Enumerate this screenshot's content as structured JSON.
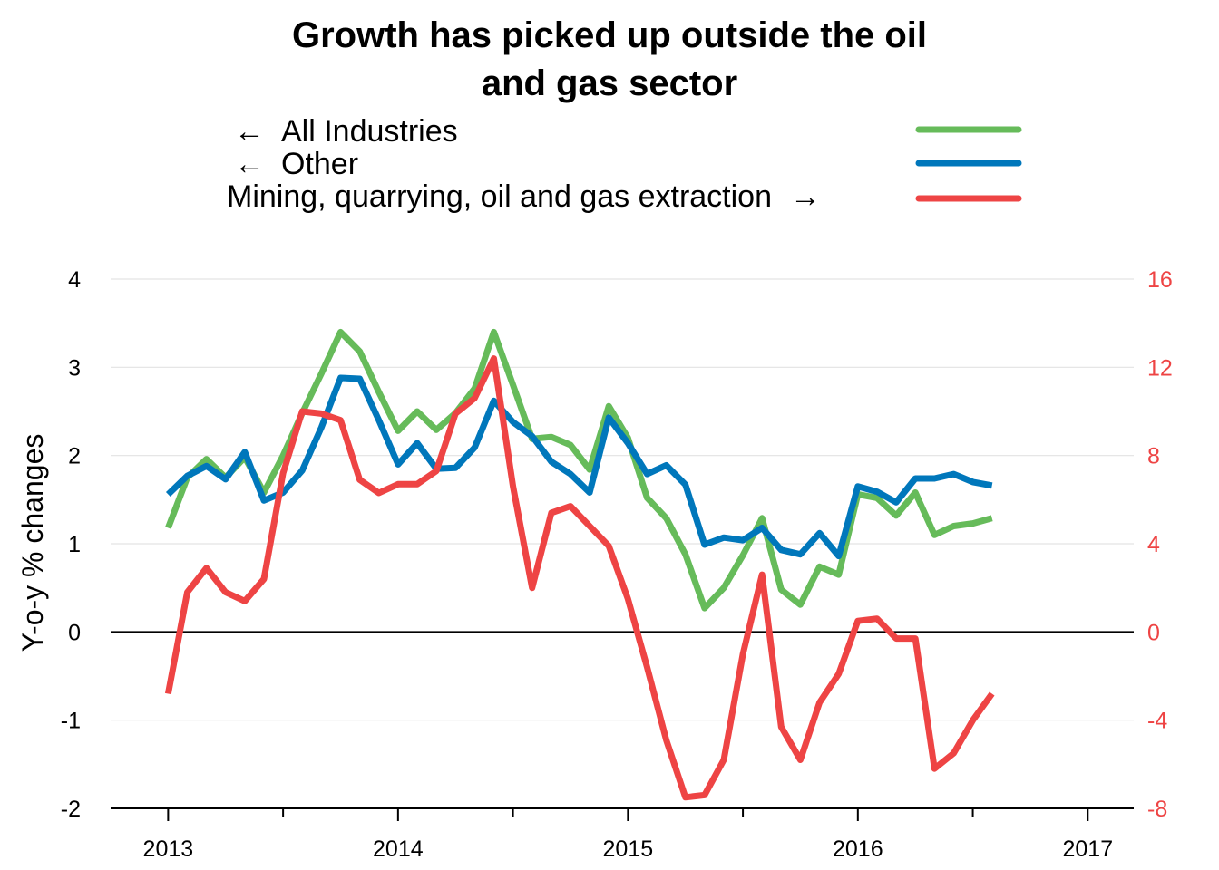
{
  "chart_data": {
    "type": "line",
    "title_lines": [
      "Growth has picked up outside the oil",
      "and gas sector"
    ],
    "ylabel": "Y-o-y % changes",
    "ylim_left": [
      -2,
      4
    ],
    "ylim_right": [
      -8,
      16
    ],
    "left_ticks": [
      "-2",
      "-1",
      "0",
      "1",
      "2",
      "3",
      "4"
    ],
    "right_ticks": [
      "-8",
      "-4",
      "0",
      "4",
      "8",
      "12",
      "16"
    ],
    "x_ticks": [
      "2013",
      "2014",
      "2015",
      "2016",
      "2017"
    ],
    "xlim": [
      2012.75,
      2017.2
    ],
    "grid": true,
    "legend_position": "top",
    "legend": [
      {
        "prefix": "←",
        "label": "All Industries",
        "suffix": "",
        "color": "#66bb5a"
      },
      {
        "prefix": "←",
        "label": "Other",
        "suffix": "",
        "color": "#0077bb"
      },
      {
        "prefix": "",
        "label": "Mining, quarrying, oil and gas extraction",
        "suffix": "→",
        "color": "#ee4444"
      }
    ],
    "right_axis_color": "#ee4444",
    "x": [
      2013.0,
      2013.0833,
      2013.1667,
      2013.25,
      2013.3333,
      2013.4167,
      2013.5,
      2013.5833,
      2013.6667,
      2013.75,
      2013.8333,
      2013.9167,
      2014.0,
      2014.0833,
      2014.1667,
      2014.25,
      2014.3333,
      2014.4167,
      2014.5,
      2014.5833,
      2014.6667,
      2014.75,
      2014.8333,
      2014.9167,
      2015.0,
      2015.0833,
      2015.1667,
      2015.25,
      2015.3333,
      2015.4167,
      2015.5,
      2015.5833,
      2015.6667,
      2015.75,
      2015.8333,
      2015.9167,
      2016.0,
      2016.0833,
      2016.1667,
      2016.25,
      2016.3333,
      2016.4167,
      2016.5,
      2016.5833
    ],
    "series": [
      {
        "name": "All Industries",
        "axis": "left",
        "color": "#66bb5a",
        "values": [
          1.18,
          1.75,
          1.96,
          1.75,
          1.98,
          1.58,
          2.0,
          2.48,
          2.93,
          3.4,
          3.18,
          2.72,
          2.28,
          2.5,
          2.29,
          2.48,
          2.76,
          3.4,
          2.8,
          2.19,
          2.21,
          2.12,
          1.84,
          2.56,
          2.2,
          1.52,
          1.29,
          0.88,
          0.27,
          0.5,
          0.87,
          1.29,
          0.48,
          0.31,
          0.74,
          0.65,
          1.56,
          1.52,
          1.32,
          1.58,
          1.1,
          1.2,
          1.23,
          1.29
        ]
      },
      {
        "name": "Other",
        "axis": "left",
        "color": "#0077bb",
        "values": [
          1.56,
          1.77,
          1.88,
          1.73,
          2.04,
          1.49,
          1.58,
          1.83,
          2.32,
          2.88,
          2.87,
          2.4,
          1.9,
          2.14,
          1.85,
          1.86,
          2.09,
          2.62,
          2.38,
          2.22,
          1.93,
          1.79,
          1.58,
          2.43,
          2.14,
          1.79,
          1.89,
          1.67,
          0.99,
          1.07,
          1.04,
          1.18,
          0.93,
          0.88,
          1.12,
          0.86,
          1.65,
          1.59,
          1.47,
          1.74,
          1.74,
          1.79,
          1.7,
          1.66
        ]
      },
      {
        "name": "Mining, quarrying, oil and gas extraction",
        "axis": "right",
        "color": "#ee4444",
        "values": [
          -2.8,
          1.8,
          2.9,
          1.8,
          1.4,
          2.4,
          7.2,
          10.0,
          9.9,
          9.6,
          6.9,
          6.3,
          6.7,
          6.7,
          7.3,
          9.9,
          10.6,
          12.4,
          6.6,
          2.0,
          5.4,
          5.7,
          4.8,
          3.9,
          1.5,
          -1.6,
          -4.9,
          -7.5,
          -7.4,
          -5.8,
          -1.0,
          2.6,
          -4.3,
          -5.8,
          -3.2,
          -1.9,
          0.5,
          0.6,
          -0.3,
          -0.3,
          -6.2,
          -5.5,
          -4.0,
          -2.8
        ]
      }
    ]
  }
}
